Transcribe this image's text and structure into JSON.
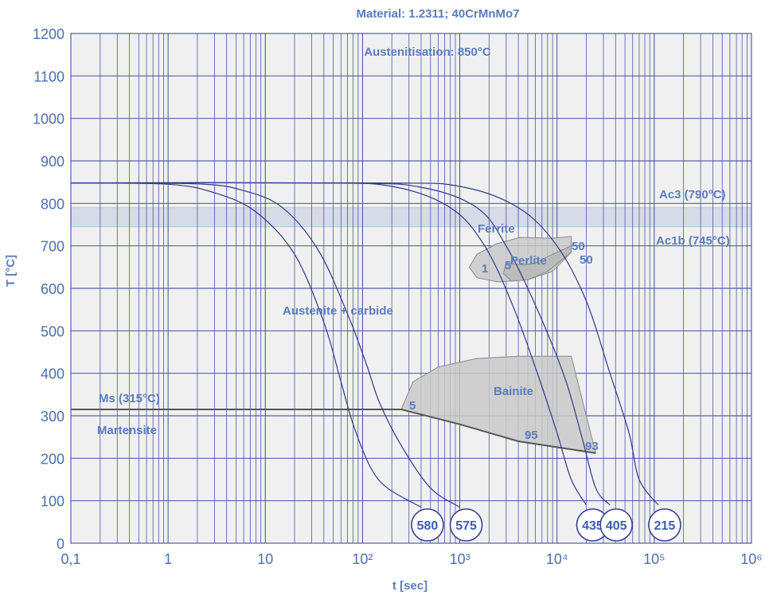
{
  "chart_data": {
    "type": "line",
    "title": "Material: 1.2311; 40CrMnMo7",
    "subtitle": "Austenitisation: 850°C",
    "xlabel": "t [sec]",
    "ylabel": "T [°C]",
    "xscale": "log",
    "xlim": [
      0.1,
      1000000
    ],
    "ylim": [
      0,
      1200
    ],
    "grid": true,
    "x_tick_labels": [
      "0,1",
      "1",
      "10",
      "10²",
      "10³",
      "10⁴",
      "10⁵",
      "10⁶"
    ],
    "y_tick_labels": [
      "0",
      "100",
      "200",
      "300",
      "400",
      "500",
      "600",
      "700",
      "800",
      "900",
      "1000",
      "1100",
      "1200"
    ],
    "colors": {
      "grid": "#2f3f9a",
      "cooling_curve": "#2f3a8a",
      "text": "#5b7cc0",
      "region_fill": "#c9c9c9",
      "ac_band": "#d7dbe8",
      "ms_line": "#555555"
    },
    "annotations": {
      "ac3": "Ac3 (790°C)",
      "ac1b": "Ac1b (745°C)",
      "ms": "Ms (315°C)",
      "martensite": "Martensite",
      "austenite": "Austenite + carbide",
      "ferrite": "Ferrite",
      "perlite": "Perlite",
      "bainite": "Bainite",
      "f1": "1",
      "f5": "5",
      "f50a": "50",
      "f50b": "50",
      "b5": "5",
      "b95": "95",
      "b93": "93"
    },
    "ac_band": {
      "ac3": 790,
      "ac1b": 745
    },
    "ms_line": {
      "x": [
        0.1,
        250
      ],
      "y": [
        315,
        315
      ]
    },
    "regions": {
      "ferrite_perlite": [
        [
          4200,
          720
        ],
        [
          2400,
          705
        ],
        [
          1500,
          680
        ],
        [
          1250,
          650
        ],
        [
          1500,
          625
        ],
        [
          2500,
          615
        ],
        [
          5000,
          620
        ],
        [
          9000,
          640
        ],
        [
          14000,
          685
        ],
        [
          14000,
          722
        ],
        [
          9000,
          718
        ]
      ],
      "perlite_inner": [
        [
          3000,
          660
        ],
        [
          2800,
          635
        ],
        [
          3400,
          617
        ],
        [
          5000,
          620
        ],
        [
          8000,
          640
        ],
        [
          14000,
          685
        ],
        [
          14000,
          700
        ],
        [
          9000,
          680
        ],
        [
          6000,
          660
        ],
        [
          4500,
          655
        ]
      ],
      "bainite": [
        [
          250,
          315
        ],
        [
          330,
          380
        ],
        [
          600,
          415
        ],
        [
          1500,
          435
        ],
        [
          4000,
          440
        ],
        [
          14000,
          440
        ],
        [
          25000,
          212
        ],
        [
          4000,
          240
        ],
        [
          1000,
          280
        ],
        [
          250,
          315
        ]
      ]
    },
    "cooling_curves": [
      {
        "label": "580",
        "points": [
          [
            0.1,
            848
          ],
          [
            1,
            845
          ],
          [
            3,
            825
          ],
          [
            8,
            780
          ],
          [
            20,
            680
          ],
          [
            40,
            520
          ],
          [
            60,
            380
          ],
          [
            80,
            280
          ],
          [
            120,
            180
          ],
          [
            180,
            130
          ],
          [
            400,
            85
          ]
        ]
      },
      {
        "label": "575",
        "points": [
          [
            0.1,
            848
          ],
          [
            2,
            846
          ],
          [
            6,
            830
          ],
          [
            15,
            790
          ],
          [
            35,
            690
          ],
          [
            70,
            540
          ],
          [
            110,
            420
          ],
          [
            150,
            330
          ],
          [
            250,
            230
          ],
          [
            500,
            130
          ],
          [
            1000,
            85
          ]
        ]
      },
      {
        "label": "435",
        "points": [
          [
            0.1,
            848
          ],
          [
            30,
            848
          ],
          [
            200,
            840
          ],
          [
            800,
            790
          ],
          [
            1800,
            700
          ],
          [
            3500,
            560
          ],
          [
            6500,
            390
          ],
          [
            10000,
            260
          ],
          [
            14000,
            150
          ],
          [
            20000,
            90
          ]
        ]
      },
      {
        "label": "405",
        "points": [
          [
            0.1,
            848
          ],
          [
            60,
            848
          ],
          [
            400,
            838
          ],
          [
            1500,
            790
          ],
          [
            3000,
            700
          ],
          [
            6000,
            560
          ],
          [
            12000,
            390
          ],
          [
            18000,
            250
          ],
          [
            25000,
            130
          ],
          [
            35000,
            90
          ]
        ]
      },
      {
        "label": "215",
        "points": [
          [
            0.1,
            848
          ],
          [
            150,
            848
          ],
          [
            1000,
            840
          ],
          [
            4000,
            790
          ],
          [
            10000,
            700
          ],
          [
            20000,
            570
          ],
          [
            35000,
            400
          ],
          [
            55000,
            260
          ],
          [
            70000,
            150
          ],
          [
            110000,
            90
          ]
        ]
      }
    ]
  }
}
